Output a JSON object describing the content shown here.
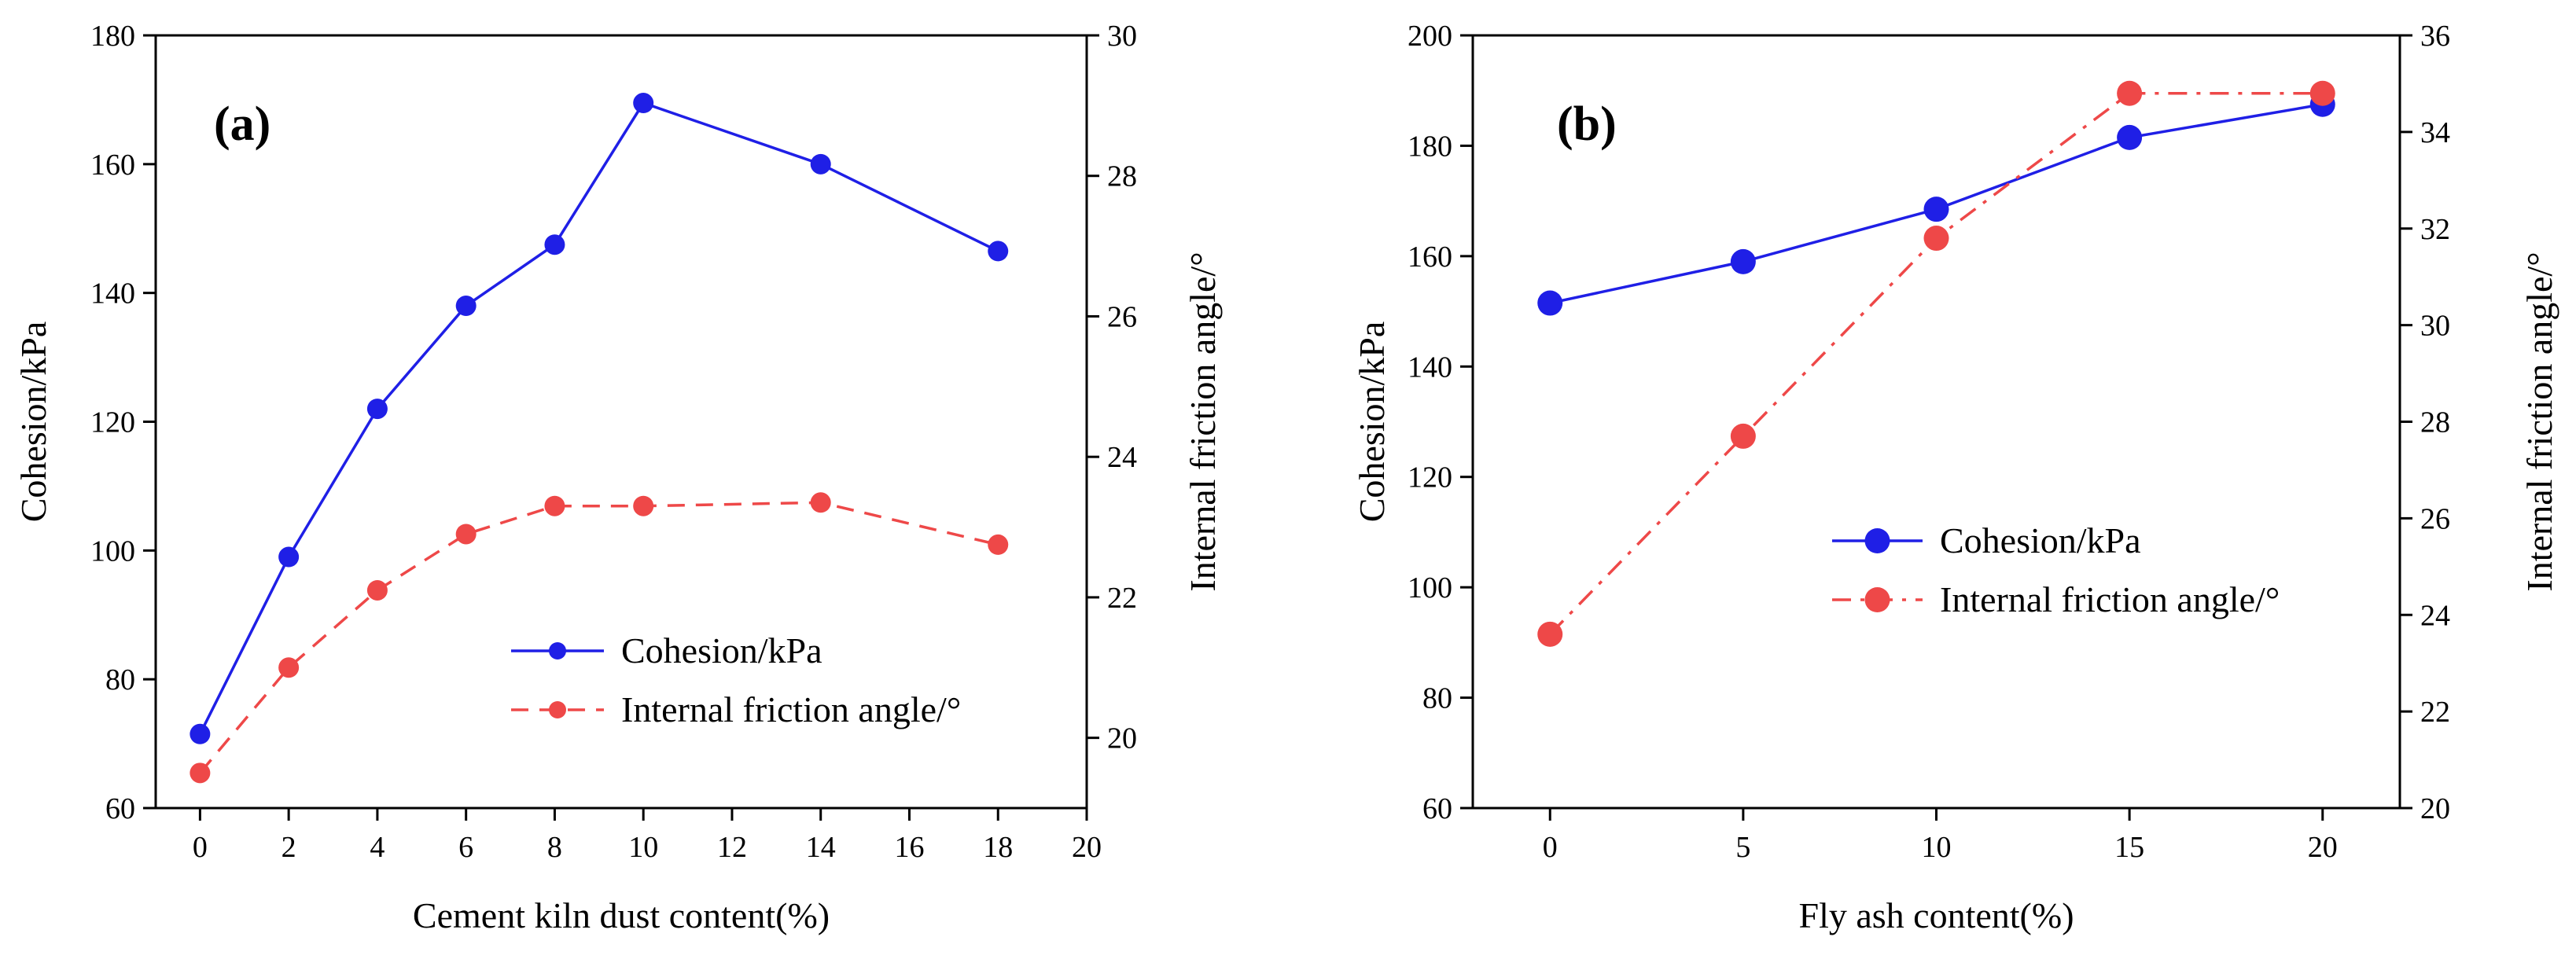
{
  "chart_data": [
    {
      "type": "line",
      "panel_label": "(a)",
      "xlabel": "Cement kiln dust content(%)",
      "ylabel_left": "Cohesion/kPa",
      "ylabel_right": "Internal friction angle/°",
      "xlim": [
        -1,
        20
      ],
      "ylim_left": [
        60,
        180
      ],
      "ylim_right": [
        19,
        30
      ],
      "x_ticks": [
        0,
        2,
        4,
        6,
        8,
        10,
        12,
        14,
        16,
        18,
        20
      ],
      "y_ticks_left": [
        60,
        80,
        100,
        120,
        140,
        160,
        180
      ],
      "y_ticks_right": [
        20,
        22,
        24,
        26,
        28,
        30
      ],
      "legend_position": "center-right",
      "grid": false,
      "series": [
        {
          "name": "Cohesion/kPa",
          "axis": "left",
          "color": "#1f1fe6",
          "line_style": "solid",
          "x": [
            0,
            2,
            4,
            6,
            8,
            10,
            14,
            18
          ],
          "values": [
            71.5,
            99,
            122,
            138,
            147.5,
            169.5,
            160,
            146.5
          ]
        },
        {
          "name": "Internal friction angle/°",
          "axis": "right",
          "color": "#ee4848",
          "line_style": "dashed",
          "x": [
            0,
            2,
            4,
            6,
            8,
            10,
            14,
            18
          ],
          "values": [
            19.5,
            21.0,
            22.1,
            22.9,
            23.3,
            23.3,
            23.35,
            22.75
          ]
        }
      ]
    },
    {
      "type": "line",
      "panel_label": "(b)",
      "xlabel": "Fly ash content(%)",
      "ylabel_left": "Cohesion/kPa",
      "ylabel_right": "Internal friction angle/°",
      "xlim": [
        -2,
        22
      ],
      "ylim_left": [
        60,
        200
      ],
      "ylim_right": [
        20,
        36
      ],
      "x_ticks": [
        0,
        5,
        10,
        15,
        20
      ],
      "y_ticks_left": [
        60,
        80,
        100,
        120,
        140,
        160,
        180,
        200
      ],
      "y_ticks_right": [
        20,
        22,
        24,
        26,
        28,
        30,
        32,
        34,
        36
      ],
      "legend_position": "center-right",
      "grid": false,
      "series": [
        {
          "name": "Cohesion/kPa",
          "axis": "left",
          "color": "#1f1fe6",
          "line_style": "solid",
          "x": [
            0,
            5,
            10,
            15,
            20
          ],
          "values": [
            151.5,
            159,
            168.5,
            181.5,
            187.5
          ]
        },
        {
          "name": "Internal friction angle/°",
          "axis": "right",
          "color": "#ee4848",
          "line_style": "dashdot",
          "x": [
            0,
            5,
            10,
            15,
            20
          ],
          "values": [
            23.6,
            27.7,
            31.8,
            34.8,
            34.8
          ]
        }
      ]
    }
  ]
}
